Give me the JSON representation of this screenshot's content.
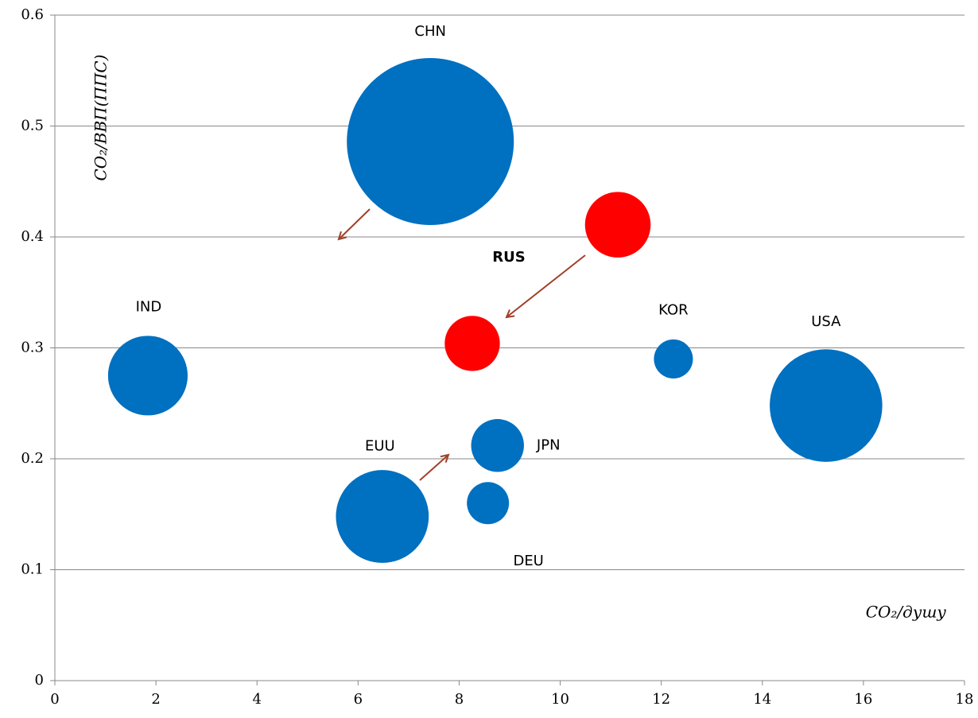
{
  "chart_data": {
    "type": "bubble",
    "x_label": "CO₂/душу",
    "y_label": "CO₂/ВВП(ППС)",
    "xlim": [
      0,
      18
    ],
    "xticks": [
      0,
      2,
      4,
      6,
      8,
      10,
      12,
      14,
      16,
      18
    ],
    "ylim": [
      0,
      0.6
    ],
    "yticks": [
      0,
      0.1,
      0.2,
      0.3,
      0.4,
      0.5,
      0.6
    ],
    "grid": true,
    "points": [
      {
        "label": "CHN",
        "x": 7.43,
        "y": 0.486,
        "size": 11,
        "color": "#0070c0"
      },
      {
        "label": "USA",
        "x": 15.26,
        "y": 0.248,
        "size": 5.0,
        "color": "#0070c0"
      },
      {
        "label": "EUU",
        "x": 6.48,
        "y": 0.148,
        "size": 3.4,
        "color": "#0070c0"
      },
      {
        "label": "IND",
        "x": 1.84,
        "y": 0.275,
        "size": 2.5,
        "color": "#0070c0"
      },
      {
        "x": 11.14,
        "y": 0.411,
        "size": 1.7,
        "color": "#ff0000"
      },
      {
        "label": "RUS",
        "x": 8.26,
        "y": 0.304,
        "size": 1.2,
        "color": "#ff0000"
      },
      {
        "label": "JPN",
        "x": 8.76,
        "y": 0.212,
        "size": 1.1,
        "color": "#0070c0"
      },
      {
        "label": "DEU",
        "x": 8.57,
        "y": 0.16,
        "size": 0.7,
        "color": "#0070c0"
      },
      {
        "label": "KOR",
        "x": 12.24,
        "y": 0.29,
        "size": 0.6,
        "color": "#0070c0"
      }
    ]
  }
}
